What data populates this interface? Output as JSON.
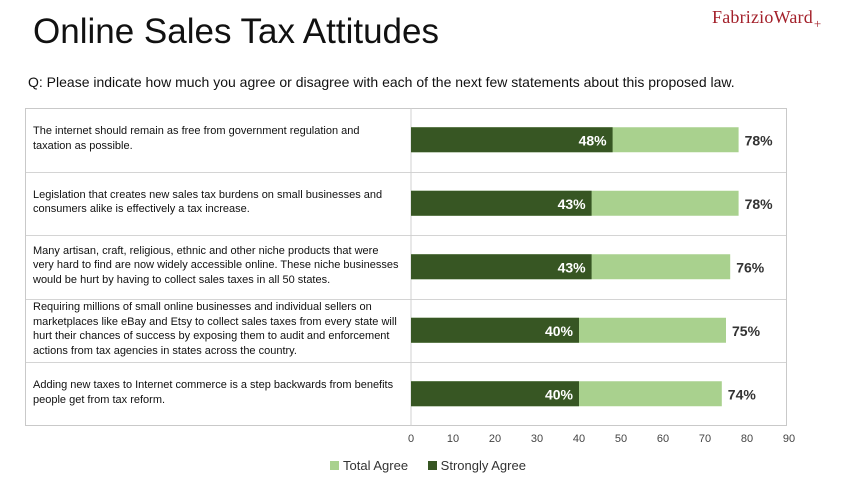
{
  "title": "Online Sales Tax Attitudes",
  "logo": {
    "name": "FabrizioWard",
    "mark": "+"
  },
  "question": "Q: Please indicate how much you agree or disagree with each of the next few statements about this proposed law.",
  "colors": {
    "total_agree": "#a9d18e",
    "strongly_agree": "#375623",
    "logo": "#a3202a"
  },
  "chart_data": {
    "type": "bar",
    "orientation": "horizontal",
    "stacked": "overlay",
    "categories": [
      "The internet should remain as free from government regulation and\ntaxation as possible.",
      "Legislation that creates new sales tax burdens on small businesses and\nconsumers alike is effectively a tax increase.",
      "Many artisan, craft, religious, ethnic and other niche products that were\nvery hard to find are now widely accessible online.  These niche businesses\nwould be hurt by having to collect sales taxes in all 50 states.",
      "Requiring millions of small online businesses and individual sellers on\nmarketplaces like eBay and Etsy to collect sales taxes from every state will\nhurt their chances of success by exposing them to audit and enforcement\nactions from tax agencies in states across the country.",
      "Adding new taxes to Internet commerce is a step backwards from benefits\npeople get from tax reform."
    ],
    "series": [
      {
        "name": "Total Agree",
        "values": [
          78,
          78,
          76,
          75,
          74
        ],
        "labels": [
          "78%",
          "78%",
          "76%",
          "75%",
          "74%"
        ]
      },
      {
        "name": "Strongly Agree",
        "values": [
          48,
          43,
          43,
          40,
          40
        ],
        "labels": [
          "48%",
          "43%",
          "43%",
          "40%",
          "40%"
        ]
      }
    ],
    "xlim": [
      0,
      90
    ],
    "xticks": [
      "0",
      "10",
      "20",
      "30",
      "40",
      "50",
      "60",
      "70",
      "80",
      "90"
    ],
    "legend_position": "bottom",
    "grid": false
  }
}
